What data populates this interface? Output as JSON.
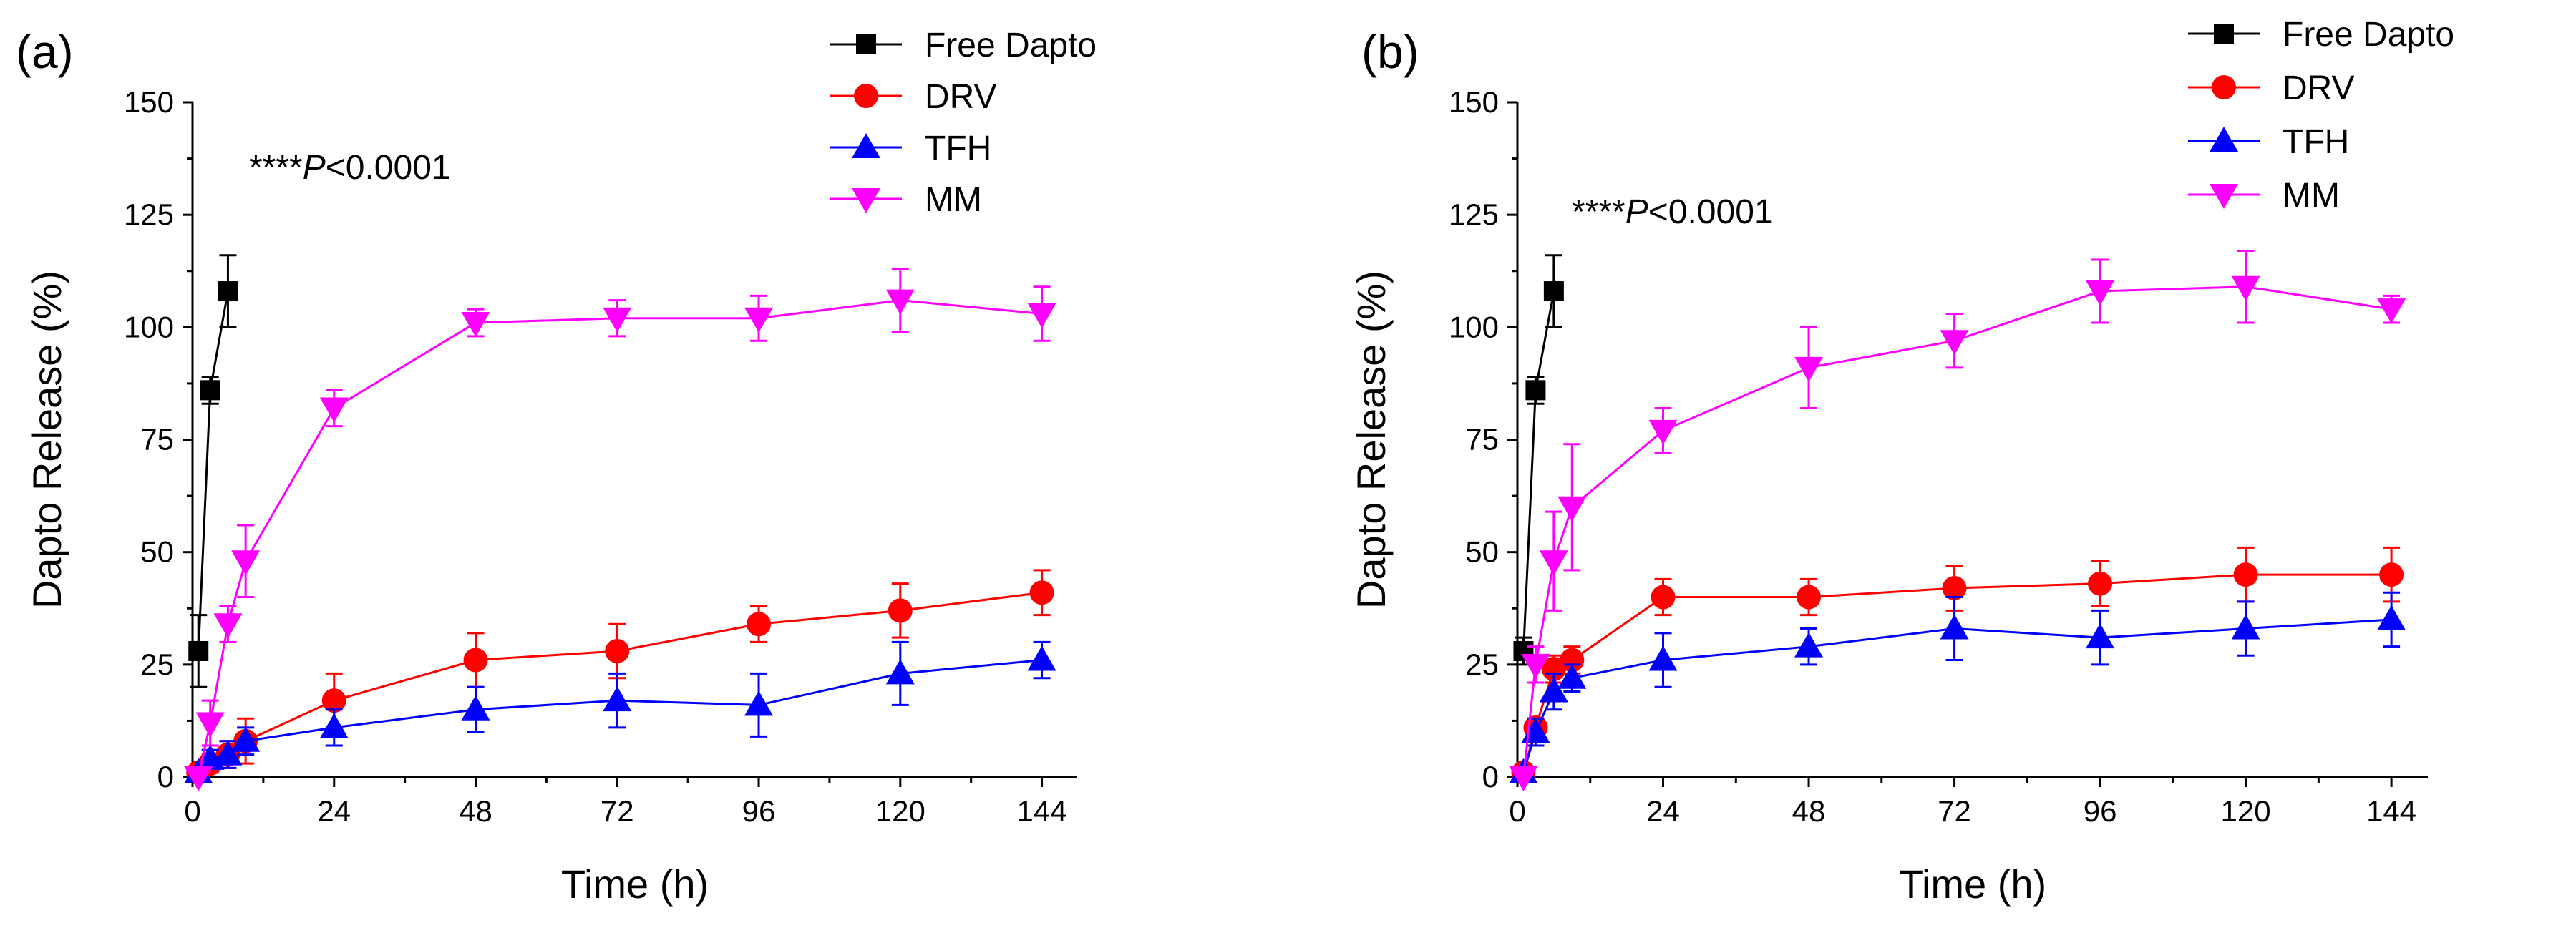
{
  "figure": {
    "description_labels": [
      "(a)",
      "(b)"
    ]
  },
  "chart_data": [
    {
      "type": "line",
      "panel_label": "(a)",
      "title": "",
      "xlabel": "Time (h)",
      "ylabel": "Dapto Release (%)",
      "xlim": [
        0,
        150
      ],
      "ylim": [
        0,
        150
      ],
      "xticks": [
        0,
        24,
        48,
        72,
        96,
        120,
        144
      ],
      "yticks": [
        0,
        25,
        50,
        75,
        100,
        125,
        150
      ],
      "annotation": {
        "prefix": "****",
        "italic": "P",
        "suffix": "<0.0001"
      },
      "legend_position": "top-right",
      "series": [
        {
          "name": "Free Dapto",
          "color": "#000000",
          "marker": "square",
          "x": [
            1,
            3,
            6
          ],
          "y": [
            28,
            86,
            108
          ],
          "err": [
            8,
            3,
            8
          ]
        },
        {
          "name": "DRV",
          "color": "#ff0000",
          "marker": "circle",
          "x": [
            1,
            3,
            6,
            9,
            24,
            48,
            72,
            96,
            120,
            144
          ],
          "y": [
            1,
            3,
            5,
            8,
            17,
            26,
            28,
            34,
            37,
            41
          ],
          "err": [
            1,
            2,
            3,
            5,
            6,
            6,
            6,
            4,
            6,
            5
          ]
        },
        {
          "name": "TFH",
          "color": "#0000ff",
          "marker": "triangle-up",
          "x": [
            1,
            3,
            6,
            9,
            24,
            48,
            72,
            96,
            120,
            144
          ],
          "y": [
            1,
            4,
            5,
            8,
            11,
            15,
            17,
            16,
            23,
            26
          ],
          "err": [
            1,
            2,
            3,
            3,
            4,
            5,
            6,
            7,
            7,
            4
          ]
        },
        {
          "name": "MM",
          "color": "#ff00ff",
          "marker": "triangle-down",
          "x": [
            1,
            3,
            6,
            9,
            24,
            48,
            72,
            96,
            120,
            144
          ],
          "y": [
            0,
            12,
            34,
            48,
            82,
            101,
            102,
            102,
            106,
            103
          ],
          "err": [
            0,
            5,
            4,
            8,
            4,
            3,
            4,
            5,
            7,
            6
          ]
        }
      ]
    },
    {
      "type": "line",
      "panel_label": "(b)",
      "title": "",
      "xlabel": "Time (h)",
      "ylabel": "Dapto Release (%)",
      "xlim": [
        0,
        150
      ],
      "ylim": [
        0,
        150
      ],
      "xticks": [
        0,
        24,
        48,
        72,
        96,
        120,
        144
      ],
      "yticks": [
        0,
        25,
        50,
        75,
        100,
        125,
        150
      ],
      "annotation": {
        "prefix": "****",
        "italic": "P",
        "suffix": "<0.0001"
      },
      "legend_position": "top-right",
      "series": [
        {
          "name": "Free Dapto",
          "color": "#000000",
          "marker": "square",
          "x": [
            1,
            3,
            6
          ],
          "y": [
            28,
            86,
            108
          ],
          "err": [
            3,
            3,
            8
          ]
        },
        {
          "name": "DRV",
          "color": "#ff0000",
          "marker": "circle",
          "x": [
            1,
            3,
            6,
            9,
            24,
            48,
            72,
            96,
            120,
            144
          ],
          "y": [
            1,
            11,
            24,
            26,
            40,
            40,
            42,
            43,
            45,
            45
          ],
          "err": [
            1,
            2,
            3,
            3,
            4,
            4,
            5,
            5,
            6,
            6
          ]
        },
        {
          "name": "TFH",
          "color": "#0000ff",
          "marker": "triangle-up",
          "x": [
            1,
            3,
            6,
            9,
            24,
            48,
            72,
            96,
            120,
            144
          ],
          "y": [
            1,
            10,
            19,
            22,
            26,
            29,
            33,
            31,
            33,
            35
          ],
          "err": [
            1,
            3,
            4,
            3,
            6,
            4,
            7,
            6,
            6,
            6
          ]
        },
        {
          "name": "MM",
          "color": "#ff00ff",
          "marker": "triangle-down",
          "x": [
            1,
            3,
            6,
            9,
            24,
            48,
            72,
            96,
            120,
            144
          ],
          "y": [
            0,
            25,
            48,
            60,
            77,
            91,
            97,
            108,
            109,
            104
          ],
          "err": [
            0,
            4,
            11,
            14,
            5,
            9,
            6,
            7,
            8,
            3
          ]
        }
      ]
    }
  ]
}
